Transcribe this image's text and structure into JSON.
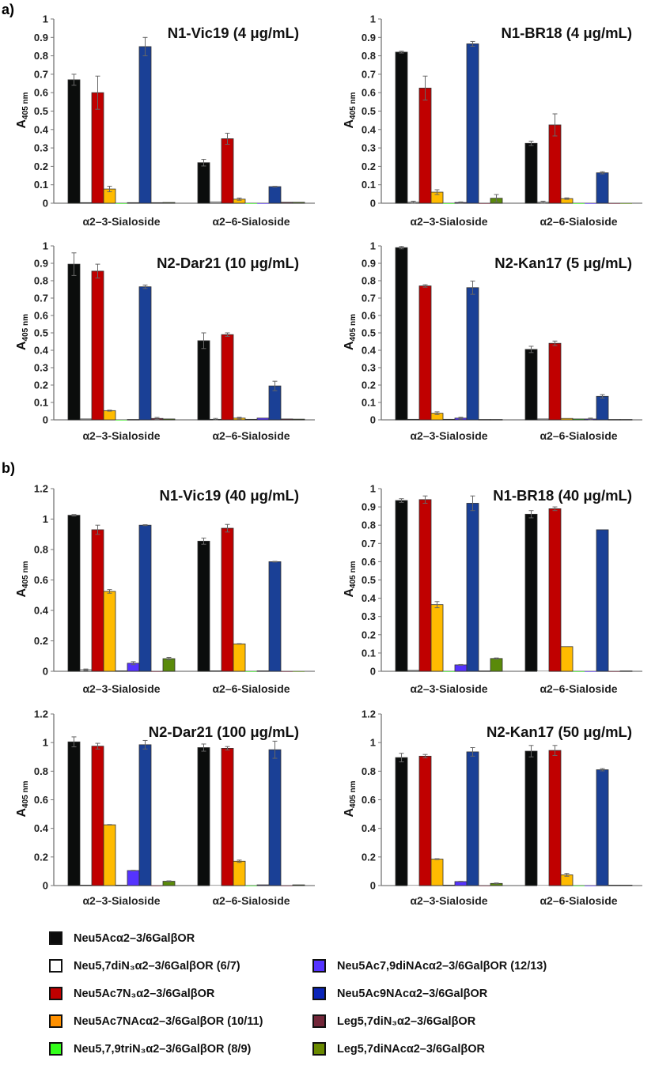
{
  "figure_labels": {
    "a": "a)",
    "b": "b)"
  },
  "chart_data": {
    "type": "bar",
    "ylabel_main": "A",
    "ylabel_sub": "405 nm",
    "categories": [
      "α2–3-Sialoside",
      "α2–6-Sialoside"
    ],
    "series": [
      {
        "name": "Neu5Acα2–3/6GalβOR",
        "bar_color": "#0b0d0c",
        "legend_color": "#0b0b0b"
      },
      {
        "name": "Neu5,7diN₃α2–3/6GalβOR (6/7)",
        "bar_color": "#ffffff",
        "legend_color": "#ffffff"
      },
      {
        "name": "Neu5Ac7N₃α2–3/6GalβOR",
        "bar_color": "#c00000",
        "legend_color": "#c00000"
      },
      {
        "name": "Neu5Ac7NAcα2–3/6GalβOR (10/11)",
        "bar_color": "#ffbb00",
        "legend_color": "#ff9000"
      },
      {
        "name": "Neu5,7,9triN₃α2–3/6GalβOR (8/9)",
        "bar_color": "#33ff1a",
        "legend_color": "#33ff1a"
      },
      {
        "name": "Neu5Ac7,9diNAcα2–3/6GalβOR (12/13)",
        "bar_color": "#5533ff",
        "legend_color": "#5533ff"
      },
      {
        "name": "Neu5Ac9NAcα2–3/6GalβOR",
        "bar_color": "#1a4096",
        "legend_color": "#0a24b8"
      },
      {
        "name": "Leg5,7diN₃α2–3/6GalβOR",
        "bar_color": "#722639",
        "legend_color": "#722639"
      },
      {
        "name": "Leg5,7diNAcα2–3/6GalβOR",
        "bar_color": "#5a8a0a",
        "legend_color": "#6a8a00"
      }
    ],
    "panels": [
      {
        "title": "N1-Vic19 (4 μg/mL)",
        "ylim": [
          0,
          1
        ],
        "yticks": [
          "0",
          "0.1",
          "0.2",
          "0.3",
          "0.4",
          "0.5",
          "0.6",
          "0.7",
          "0.8",
          "0.9",
          "1"
        ],
        "values": [
          [
            0.67,
            0.003,
            0.6,
            0.077,
            0,
            0.003,
            0.85,
            0.003,
            0.004
          ],
          [
            0.22,
            0.006,
            0.35,
            0.022,
            0,
            0,
            0.09,
            0.005,
            0.005
          ]
        ],
        "errors": [
          [
            0.03,
            0,
            0.09,
            0.015,
            0,
            0,
            0.05,
            0,
            0
          ],
          [
            0.018,
            0,
            0.03,
            0.006,
            0,
            0,
            0.002,
            0,
            0
          ]
        ]
      },
      {
        "title": "N1-BR18 (4 μg/mL)",
        "ylim": [
          0,
          1
        ],
        "yticks": [
          "0",
          "0.1",
          "0.2",
          "0.3",
          "0.4",
          "0.5",
          "0.6",
          "0.7",
          "0.8",
          "0.9",
          "1"
        ],
        "values": [
          [
            0.82,
            0.005,
            0.625,
            0.06,
            0,
            0.004,
            0.865,
            0,
            0.027
          ],
          [
            0.325,
            0.005,
            0.425,
            0.025,
            0,
            0,
            0.165,
            0,
            0
          ]
        ],
        "errors": [
          [
            0.005,
            0.006,
            0.065,
            0.013,
            0,
            0.003,
            0.013,
            0,
            0.02
          ],
          [
            0.012,
            0.006,
            0.06,
            0.004,
            0,
            0,
            0.006,
            0,
            0
          ]
        ]
      },
      {
        "title": "N2-Dar21 (10 μg/mL)",
        "ylim": [
          0,
          1
        ],
        "yticks": [
          "0",
          "0.1",
          "0.2",
          "0.3",
          "0.4",
          "0.5",
          "0.6",
          "0.7",
          "0.8",
          "0.9",
          "1"
        ],
        "values": [
          [
            0.895,
            0.005,
            0.855,
            0.053,
            0,
            0.002,
            0.765,
            0.008,
            0.005
          ],
          [
            0.455,
            0.003,
            0.49,
            0.01,
            0.003,
            0.01,
            0.195,
            0.005,
            0.004
          ]
        ],
        "errors": [
          [
            0.065,
            0,
            0.04,
            0.003,
            0,
            0,
            0.01,
            0.006,
            0
          ],
          [
            0.045,
            0.005,
            0.01,
            0.005,
            0,
            0,
            0.027,
            0,
            0
          ]
        ]
      },
      {
        "title": "N2-Kan17 (5 μg/mL)",
        "ylim": [
          0,
          1
        ],
        "yticks": [
          "0",
          "0.1",
          "0.2",
          "0.3",
          "0.4",
          "0.5",
          "0.6",
          "0.7",
          "0.8",
          "0.9",
          "1"
        ],
        "values": [
          [
            0.99,
            0.003,
            0.77,
            0.038,
            0.003,
            0.01,
            0.76,
            0.002,
            0.002
          ],
          [
            0.405,
            0.005,
            0.44,
            0.008,
            0.005,
            0.005,
            0.135,
            0.002,
            0.002
          ]
        ],
        "errors": [
          [
            0.007,
            0,
            0.007,
            0.008,
            0,
            0.005,
            0.038,
            0,
            0
          ],
          [
            0.018,
            0,
            0.013,
            0,
            0,
            0.005,
            0.01,
            0,
            0
          ]
        ]
      },
      {
        "title": "N1-Vic19 (40 μg/mL)",
        "ylim": [
          0,
          1.2
        ],
        "yticks": [
          "0",
          "0.2",
          "0.4",
          "0.6",
          "0.8",
          "1",
          "1.2"
        ],
        "values": [
          [
            1.025,
            0.01,
            0.93,
            0.525,
            0.003,
            0.053,
            0.96,
            0,
            0.083
          ],
          [
            0.855,
            0.003,
            0.94,
            0.18,
            0,
            0.003,
            0.72,
            0,
            0
          ]
        ],
        "errors": [
          [
            0.005,
            0.005,
            0.03,
            0.012,
            0,
            0.01,
            0.003,
            0,
            0.008
          ],
          [
            0.02,
            0,
            0.025,
            0.002,
            0,
            0,
            0.002,
            0,
            0
          ]
        ]
      },
      {
        "title": "N1-BR18 (40 μg/mL)",
        "ylim": [
          0,
          1
        ],
        "yticks": [
          "0",
          "0.1",
          "0.2",
          "0.3",
          "0.4",
          "0.5",
          "0.6",
          "0.7",
          "0.8",
          "0.9",
          "1"
        ],
        "values": [
          [
            0.935,
            0.005,
            0.94,
            0.365,
            0,
            0.035,
            0.92,
            0.002,
            0.07
          ],
          [
            0.86,
            0,
            0.89,
            0.135,
            0,
            0,
            0.775,
            0,
            0.002
          ]
        ],
        "errors": [
          [
            0.01,
            0,
            0.02,
            0.017,
            0,
            0.002,
            0.04,
            0,
            0.003
          ],
          [
            0.02,
            0,
            0.01,
            0,
            0,
            0,
            0,
            0,
            0
          ]
        ]
      },
      {
        "title": "N2-Dar21 (100 μg/mL)",
        "ylim": [
          0,
          1.2
        ],
        "yticks": [
          "0",
          "0.2",
          "0.4",
          "0.6",
          "0.8",
          "1",
          "1.2"
        ],
        "values": [
          [
            1.005,
            0.003,
            0.975,
            0.425,
            0.003,
            0.105,
            0.985,
            0,
            0.03
          ],
          [
            0.965,
            0,
            0.96,
            0.17,
            0,
            0.005,
            0.95,
            0,
            0.005
          ]
        ],
        "errors": [
          [
            0.035,
            0,
            0.02,
            0.002,
            0,
            0.002,
            0.03,
            0,
            0.003
          ],
          [
            0.025,
            0,
            0.012,
            0.008,
            0,
            0,
            0.06,
            0,
            0
          ]
        ]
      },
      {
        "title": "N2-Kan17 (50 μg/mL)",
        "ylim": [
          0,
          1.2
        ],
        "yticks": [
          "0",
          "0.2",
          "0.4",
          "0.6",
          "0.8",
          "1",
          "1.2"
        ],
        "values": [
          [
            0.895,
            0,
            0.905,
            0.185,
            0.003,
            0.028,
            0.935,
            0,
            0.015
          ],
          [
            0.94,
            0,
            0.945,
            0.075,
            0,
            0,
            0.81,
            0.003,
            0.003
          ]
        ],
        "errors": [
          [
            0.03,
            0,
            0.012,
            0.003,
            0,
            0.002,
            0.03,
            0,
            0.003
          ],
          [
            0.04,
            0,
            0.035,
            0.01,
            0,
            0,
            0.008,
            0,
            0
          ]
        ]
      }
    ],
    "grid": false,
    "legend_placement": "bottom"
  }
}
